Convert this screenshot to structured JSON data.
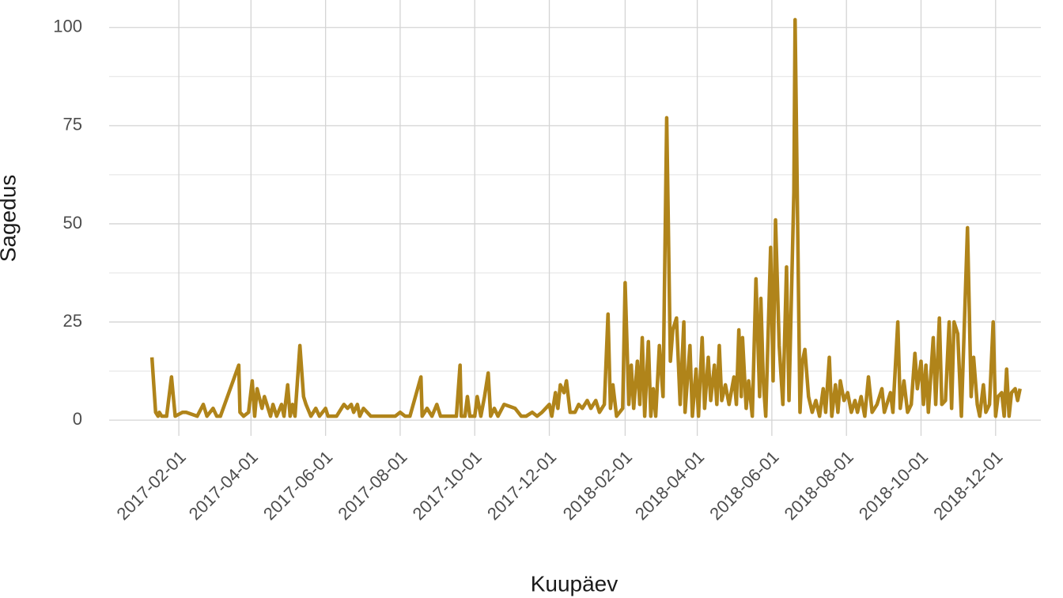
{
  "chart_data": {
    "type": "line",
    "x_label": "Kuupäev",
    "y_label": "Sagedus",
    "xlim": [
      "2016-12-06",
      "2019-01-07"
    ],
    "xticks": [
      "2017-02-01",
      "2017-04-01",
      "2017-06-01",
      "2017-08-01",
      "2017-10-01",
      "2017-12-01",
      "2018-02-01",
      "2018-04-01",
      "2018-06-01",
      "2018-08-01",
      "2018-10-01",
      "2018-12-01"
    ],
    "ylim": [
      -4,
      107
    ],
    "yticks": [
      0,
      25,
      50,
      75,
      100
    ],
    "minor_yticks": [
      12.5,
      37.5,
      62.5,
      87.5
    ],
    "grid": true,
    "x": [
      "2017-01-10",
      "2017-01-13",
      "2017-01-15",
      "2017-01-16",
      "2017-01-18",
      "2017-01-22",
      "2017-01-26",
      "2017-01-29",
      "2017-02-04",
      "2017-02-07",
      "2017-02-16",
      "2017-02-21",
      "2017-02-24",
      "2017-03-01",
      "2017-03-04",
      "2017-03-07",
      "2017-03-22",
      "2017-03-23",
      "2017-03-26",
      "2017-03-30",
      "2017-04-02",
      "2017-04-04",
      "2017-04-06",
      "2017-04-10",
      "2017-04-12",
      "2017-04-17",
      "2017-04-19",
      "2017-04-22",
      "2017-04-26",
      "2017-04-28",
      "2017-05-01",
      "2017-05-03",
      "2017-05-05",
      "2017-05-07",
      "2017-05-11",
      "2017-05-14",
      "2017-05-16",
      "2017-05-20",
      "2017-05-24",
      "2017-05-27",
      "2017-06-01",
      "2017-06-03",
      "2017-06-10",
      "2017-06-14",
      "2017-06-16",
      "2017-06-19",
      "2017-06-22",
      "2017-06-24",
      "2017-06-27",
      "2017-06-29",
      "2017-07-02",
      "2017-07-08",
      "2017-07-28",
      "2017-08-01",
      "2017-08-05",
      "2017-08-09",
      "2017-08-18",
      "2017-08-19",
      "2017-08-23",
      "2017-08-27",
      "2017-08-31",
      "2017-09-03",
      "2017-09-09",
      "2017-09-16",
      "2017-09-19",
      "2017-09-20",
      "2017-09-23",
      "2017-09-25",
      "2017-09-27",
      "2017-10-01",
      "2017-10-03",
      "2017-10-06",
      "2017-10-09",
      "2017-10-12",
      "2017-10-14",
      "2017-10-17",
      "2017-10-20",
      "2017-10-25",
      "2017-11-03",
      "2017-11-08",
      "2017-11-12",
      "2017-11-17",
      "2017-11-21",
      "2017-11-25",
      "2017-12-01",
      "2017-12-03",
      "2017-12-06",
      "2017-12-08",
      "2017-12-10",
      "2017-12-13",
      "2017-12-15",
      "2017-12-18",
      "2017-12-22",
      "2017-12-25",
      "2017-12-28",
      "2018-01-01",
      "2018-01-04",
      "2018-01-08",
      "2018-01-11",
      "2018-01-15",
      "2018-01-18",
      "2018-01-20",
      "2018-01-22",
      "2018-01-25",
      "2018-01-30",
      "2018-02-01",
      "2018-02-04",
      "2018-02-06",
      "2018-02-08",
      "2018-02-11",
      "2018-02-13",
      "2018-02-15",
      "2018-02-17",
      "2018-02-20",
      "2018-02-22",
      "2018-02-24",
      "2018-02-26",
      "2018-03-01",
      "2018-03-04",
      "2018-03-07",
      "2018-03-10",
      "2018-03-12",
      "2018-03-15",
      "2018-03-18",
      "2018-03-21",
      "2018-03-22",
      "2018-03-26",
      "2018-03-28",
      "2018-03-31",
      "2018-04-02",
      "2018-04-05",
      "2018-04-07",
      "2018-04-10",
      "2018-04-12",
      "2018-04-15",
      "2018-04-17",
      "2018-04-19",
      "2018-04-21",
      "2018-04-24",
      "2018-04-27",
      "2018-05-01",
      "2018-05-03",
      "2018-05-05",
      "2018-05-07",
      "2018-05-08",
      "2018-05-11",
      "2018-05-13",
      "2018-05-16",
      "2018-05-19",
      "2018-05-22",
      "2018-05-23",
      "2018-05-25",
      "2018-05-27",
      "2018-05-31",
      "2018-06-02",
      "2018-06-04",
      "2018-06-07",
      "2018-06-10",
      "2018-06-13",
      "2018-06-15",
      "2018-06-19",
      "2018-06-20",
      "2018-06-24",
      "2018-06-26",
      "2018-06-28",
      "2018-07-01",
      "2018-07-04",
      "2018-07-07",
      "2018-07-10",
      "2018-07-13",
      "2018-07-15",
      "2018-07-18",
      "2018-07-20",
      "2018-07-23",
      "2018-07-25",
      "2018-07-27",
      "2018-07-30",
      "2018-08-02",
      "2018-08-05",
      "2018-08-08",
      "2018-08-10",
      "2018-08-13",
      "2018-08-16",
      "2018-08-19",
      "2018-08-22",
      "2018-08-26",
      "2018-08-30",
      "2018-09-01",
      "2018-09-06",
      "2018-09-08",
      "2018-09-12",
      "2018-09-14",
      "2018-09-17",
      "2018-09-20",
      "2018-09-23",
      "2018-09-26",
      "2018-09-28",
      "2018-10-01",
      "2018-10-03",
      "2018-10-05",
      "2018-10-07",
      "2018-10-11",
      "2018-10-13",
      "2018-10-16",
      "2018-10-18",
      "2018-10-21",
      "2018-10-24",
      "2018-10-26",
      "2018-10-28",
      "2018-10-31",
      "2018-11-03",
      "2018-11-08",
      "2018-11-11",
      "2018-11-13",
      "2018-11-16",
      "2018-11-18",
      "2018-11-21",
      "2018-11-23",
      "2018-11-26",
      "2018-11-29",
      "2018-12-01",
      "2018-12-03",
      "2018-12-06",
      "2018-12-08",
      "2018-12-10",
      "2018-12-12",
      "2018-12-14",
      "2018-12-17",
      "2018-12-19",
      "2018-12-21"
    ],
    "series": [
      {
        "color": "#b0841a",
        "values": [
          16,
          2,
          1,
          2,
          1,
          1,
          11,
          1,
          2,
          2,
          1,
          4,
          1,
          3,
          1,
          1,
          14,
          2,
          1,
          2,
          10,
          1,
          8,
          3,
          6,
          1,
          4,
          1,
          4,
          1,
          9,
          1,
          4,
          1,
          19,
          6,
          4,
          1,
          3,
          1,
          3,
          1,
          1,
          3,
          4,
          3,
          4,
          2,
          4,
          1,
          3,
          1,
          1,
          2,
          1,
          1,
          11,
          1,
          3,
          1,
          4,
          1,
          1,
          1,
          14,
          1,
          1,
          6,
          1,
          1,
          6,
          1,
          6,
          12,
          1,
          3,
          1,
          4,
          3,
          1,
          1,
          2,
          1,
          2,
          4,
          1,
          7,
          3,
          9,
          7,
          10,
          2,
          2,
          4,
          3,
          5,
          3,
          5,
          2,
          4,
          27,
          3,
          9,
          1,
          3,
          35,
          4,
          14,
          3,
          15,
          4,
          21,
          1,
          20,
          1,
          8,
          1,
          19,
          6,
          77,
          15,
          23,
          26,
          4,
          25,
          2,
          19,
          1,
          13,
          1,
          21,
          3,
          16,
          5,
          14,
          4,
          19,
          5,
          9,
          4,
          11,
          4,
          23,
          6,
          21,
          3,
          10,
          1,
          36,
          6,
          31,
          10,
          1,
          44,
          10,
          51,
          19,
          4,
          39,
          5,
          58,
          102,
          2,
          15,
          18,
          6,
          2,
          5,
          1,
          8,
          2,
          16,
          1,
          9,
          2,
          10,
          5,
          7,
          2,
          5,
          2,
          6,
          1,
          11,
          2,
          4,
          8,
          2,
          7,
          2,
          25,
          3,
          10,
          2,
          4,
          17,
          8,
          15,
          4,
          14,
          2,
          21,
          4,
          26,
          4,
          5,
          25,
          3,
          25,
          22,
          1,
          49,
          6,
          16,
          4,
          1,
          9,
          2,
          4,
          25,
          1,
          6,
          7,
          1,
          13,
          1,
          7,
          8,
          5,
          8
        ]
      }
    ]
  }
}
